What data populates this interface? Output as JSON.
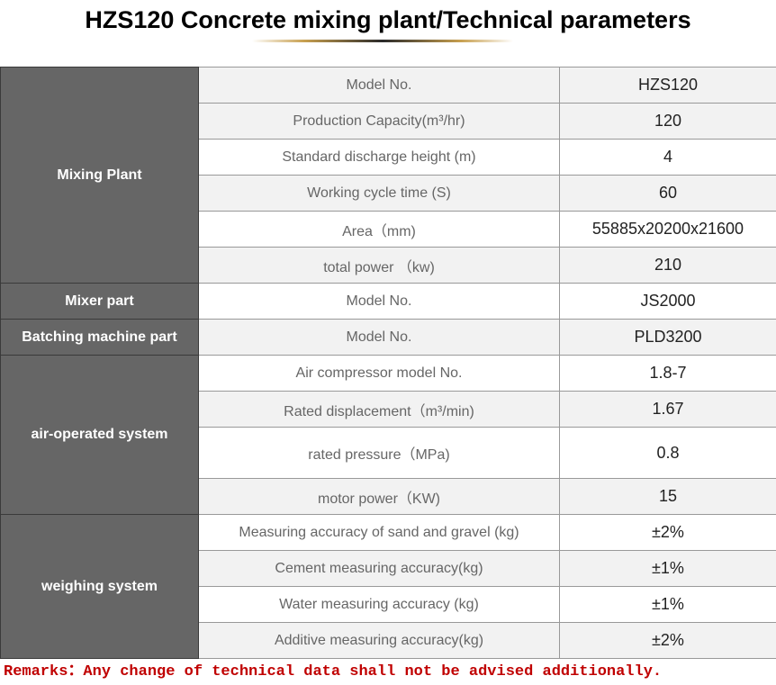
{
  "title": "HZS120 Concrete mixing plant/Technical parameters",
  "table": {
    "mixing_plant": {
      "category": "Mixing Plant",
      "rows": [
        {
          "param": "Model No.",
          "value": "HZS120"
        },
        {
          "param": "Production Capacity(m³/hr)",
          "value": "120"
        },
        {
          "param": "Standard discharge height (m)",
          "value": "4"
        },
        {
          "param": "Working cycle time (S)",
          "value": "60"
        },
        {
          "param": "Area（mm)",
          "value": "55885x20200x21600"
        },
        {
          "param": "total power （kw)",
          "value": "210"
        }
      ]
    },
    "mixer_part": {
      "category": "Mixer part",
      "rows": [
        {
          "param": "Model No.",
          "value": "JS2000"
        }
      ]
    },
    "batching_part": {
      "category": "Batching machine part",
      "rows": [
        {
          "param": "Model No.",
          "value": "PLD3200"
        }
      ]
    },
    "air_system": {
      "category": "air-operated system",
      "rows": [
        {
          "param": "Air compressor model No.",
          "value": "1.8-7"
        },
        {
          "param": "Rated displacement（m³/min)",
          "value": "1.67"
        },
        {
          "param": "rated pressure（MPa)",
          "value": "0.8"
        },
        {
          "param": "motor power（KW)",
          "value": "15"
        }
      ]
    },
    "weighing_system": {
      "category": "weighing system",
      "rows": [
        {
          "param": "Measuring accuracy of sand and gravel (kg)",
          "value": "±2%"
        },
        {
          "param": "Cement measuring accuracy(kg)",
          "value": "±1%"
        },
        {
          "param": "Water measuring accuracy (kg)",
          "value": "±1%"
        },
        {
          "param": "Additive measuring accuracy(kg)",
          "value": "±2%"
        }
      ]
    }
  },
  "remarks": "Remarks：Any change of technical data shall not be advised additionally."
}
